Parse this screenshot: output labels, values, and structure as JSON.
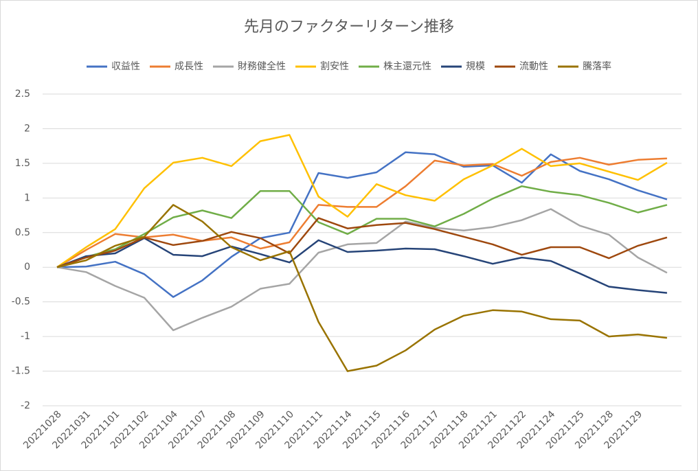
{
  "chart_data": {
    "type": "line",
    "title": "先月のファクターリターン推移",
    "categories": [
      "20221028",
      "20221031",
      "20221101",
      "20221102",
      "20221104",
      "20221107",
      "20221108",
      "20221109",
      "20221110",
      "20221111",
      "20221114",
      "20221115",
      "20221116",
      "20221117",
      "20221118",
      "20221121",
      "20221122",
      "20221124",
      "20221125",
      "20221128",
      "20221129",
      null
    ],
    "series": [
      {
        "name": "収益性",
        "color": "#4472c4",
        "values": [
          0,
          0.01,
          0.08,
          -0.1,
          -0.43,
          -0.19,
          0.15,
          0.42,
          0.5,
          1.36,
          1.29,
          1.37,
          1.66,
          1.63,
          1.45,
          1.47,
          1.22,
          1.63,
          1.39,
          1.27,
          1.11,
          0.98
        ]
      },
      {
        "name": "成長性",
        "color": "#ed7d31",
        "values": [
          0,
          0.25,
          0.48,
          0.43,
          0.47,
          0.38,
          0.43,
          0.27,
          0.36,
          0.9,
          0.87,
          0.87,
          1.17,
          1.54,
          1.47,
          1.49,
          1.32,
          1.52,
          1.58,
          1.48,
          1.55,
          1.57
        ]
      },
      {
        "name": "財務健全性",
        "color": "#a5a5a5",
        "values": [
          0,
          -0.07,
          -0.27,
          -0.44,
          -0.91,
          -0.73,
          -0.57,
          -0.31,
          -0.24,
          0.21,
          0.33,
          0.35,
          0.66,
          0.57,
          0.53,
          0.58,
          0.68,
          0.84,
          0.6,
          0.47,
          0.14,
          -0.08
        ]
      },
      {
        "name": "割安性",
        "color": "#ffc000",
        "values": [
          0,
          0.29,
          0.55,
          1.14,
          1.51,
          1.58,
          1.46,
          1.82,
          1.91,
          1.02,
          0.73,
          1.2,
          1.04,
          0.96,
          1.27,
          1.47,
          1.71,
          1.46,
          1.5,
          1.38,
          1.26,
          1.51
        ]
      },
      {
        "name": "株主還元性",
        "color": "#70ad47",
        "values": [
          0,
          0.15,
          0.26,
          0.48,
          0.72,
          0.82,
          0.71,
          1.1,
          1.1,
          0.65,
          0.48,
          0.7,
          0.7,
          0.59,
          0.77,
          0.99,
          1.17,
          1.09,
          1.04,
          0.93,
          0.79,
          0.9
        ]
      },
      {
        "name": "規模",
        "color": "#264478",
        "values": [
          0,
          0.16,
          0.2,
          0.42,
          0.18,
          0.16,
          0.3,
          0.19,
          0.07,
          0.39,
          0.22,
          0.24,
          0.27,
          0.26,
          0.16,
          0.05,
          0.14,
          0.09,
          -0.09,
          -0.28,
          -0.33,
          -0.37
        ]
      },
      {
        "name": "流動性",
        "color": "#9e480e",
        "values": [
          0,
          0.14,
          0.24,
          0.43,
          0.32,
          0.38,
          0.51,
          0.42,
          0.2,
          0.71,
          0.56,
          0.61,
          0.64,
          0.55,
          0.44,
          0.33,
          0.18,
          0.29,
          0.29,
          0.13,
          0.31,
          0.43
        ]
      },
      {
        "name": "騰落率",
        "color": "#997300",
        "values": [
          0,
          0.1,
          0.31,
          0.44,
          0.9,
          0.66,
          0.29,
          0.1,
          0.23,
          -0.79,
          -1.5,
          -1.42,
          -1.2,
          -0.9,
          -0.7,
          -0.62,
          -0.64,
          -0.75,
          -0.77,
          -1.0,
          -0.97,
          -1.02
        ]
      }
    ],
    "ylim": [
      -2,
      2.5
    ],
    "yticks": [
      -2,
      -1.5,
      -1,
      -0.5,
      0,
      0.5,
      1,
      1.5,
      2,
      2.5
    ],
    "grid": true,
    "legend": "top"
  }
}
